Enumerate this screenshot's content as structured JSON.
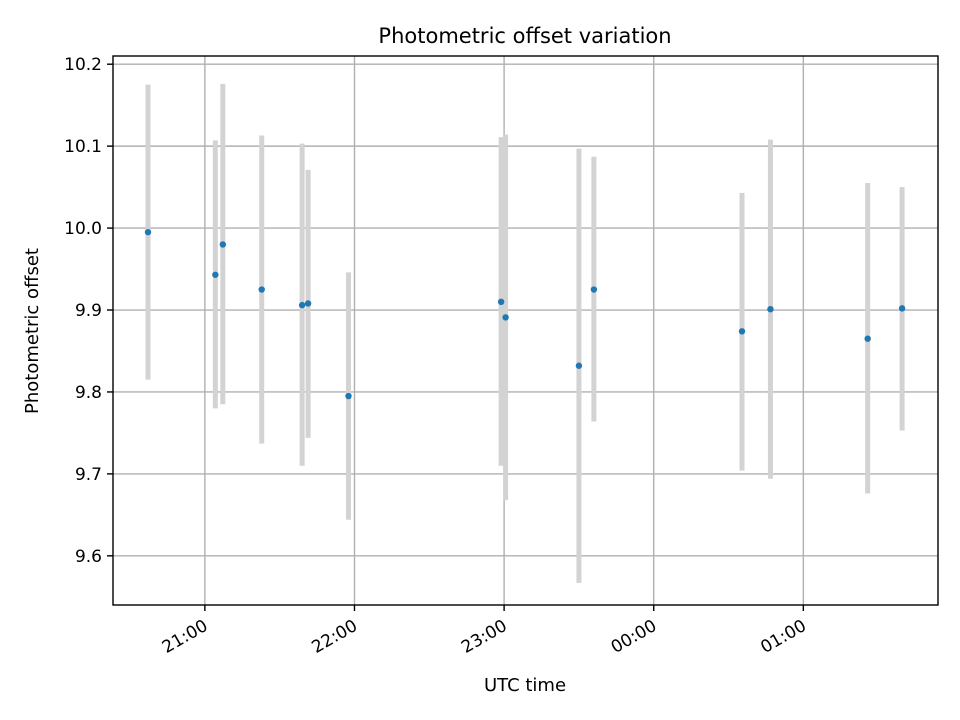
{
  "chart_data": {
    "type": "scatter",
    "title": "Photometric offset variation",
    "xlabel": "UTC time",
    "ylabel": "Photometric offset",
    "x_ticks": [
      "21:00",
      "22:00",
      "23:00",
      "00:00",
      "01:00"
    ],
    "x_tick_hours": [
      21,
      22,
      23,
      24,
      25
    ],
    "y_ticks": [
      "9.6",
      "9.7",
      "9.8",
      "9.9",
      "10.0",
      "10.1",
      "10.2"
    ],
    "y_tick_values": [
      9.6,
      9.7,
      9.8,
      9.9,
      10.0,
      10.1,
      10.2
    ],
    "xlim_hours": [
      20.386,
      25.9
    ],
    "ylim": [
      9.54,
      10.21
    ],
    "grid": true,
    "marker_color": "#1f77b4",
    "errorbar_color": "#d3d3d3",
    "points": [
      {
        "time": "20:37",
        "hours": 20.62,
        "y": 9.995,
        "ylow": 9.815,
        "yhigh": 10.175
      },
      {
        "time": "21:04",
        "hours": 21.07,
        "y": 9.943,
        "ylow": 9.78,
        "yhigh": 10.107
      },
      {
        "time": "21:07",
        "hours": 21.12,
        "y": 9.98,
        "ylow": 9.785,
        "yhigh": 10.176
      },
      {
        "time": "21:23",
        "hours": 21.38,
        "y": 9.925,
        "ylow": 9.737,
        "yhigh": 10.113
      },
      {
        "time": "21:39",
        "hours": 21.65,
        "y": 9.906,
        "ylow": 9.71,
        "yhigh": 10.103
      },
      {
        "time": "21:42",
        "hours": 21.69,
        "y": 9.908,
        "ylow": 9.744,
        "yhigh": 10.071
      },
      {
        "time": "21:58",
        "hours": 21.96,
        "y": 9.795,
        "ylow": 9.644,
        "yhigh": 9.946
      },
      {
        "time": "22:59",
        "hours": 22.98,
        "y": 9.91,
        "ylow": 9.71,
        "yhigh": 10.111
      },
      {
        "time": "23:00",
        "hours": 23.01,
        "y": 9.891,
        "ylow": 9.668,
        "yhigh": 10.114
      },
      {
        "time": "23:30",
        "hours": 23.5,
        "y": 9.832,
        "ylow": 9.567,
        "yhigh": 10.097
      },
      {
        "time": "23:36",
        "hours": 23.6,
        "y": 9.925,
        "ylow": 9.764,
        "yhigh": 10.087
      },
      {
        "time": "00:35",
        "hours": 24.59,
        "y": 9.874,
        "ylow": 9.704,
        "yhigh": 10.043
      },
      {
        "time": "00:47",
        "hours": 24.78,
        "y": 9.901,
        "ylow": 9.694,
        "yhigh": 10.108
      },
      {
        "time": "01:26",
        "hours": 25.43,
        "y": 9.865,
        "ylow": 9.676,
        "yhigh": 10.055
      },
      {
        "time": "01:39",
        "hours": 25.66,
        "y": 9.902,
        "ylow": 9.753,
        "yhigh": 10.05
      }
    ]
  }
}
